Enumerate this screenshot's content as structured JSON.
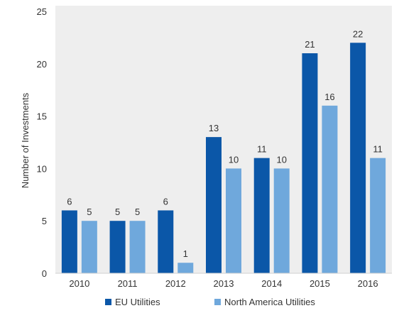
{
  "chart_data": {
    "type": "bar",
    "categories": [
      "2010",
      "2011",
      "2012",
      "2013",
      "2014",
      "2015",
      "2016"
    ],
    "series": [
      {
        "name": "EU Utilities",
        "color": "#0b57a8",
        "values": [
          6,
          5,
          6,
          13,
          11,
          21,
          22
        ]
      },
      {
        "name": "North America Utilities",
        "color": "#6fa8dc",
        "values": [
          5,
          5,
          1,
          10,
          10,
          16,
          11
        ]
      }
    ],
    "title": "",
    "xlabel": "",
    "ylabel": "Number of Investments",
    "ylim": [
      0,
      25
    ],
    "yticks": [
      0,
      5,
      10,
      15,
      20,
      25
    ],
    "grid": false,
    "legend_position": "bottom",
    "plot_background": "#eeeeee"
  }
}
